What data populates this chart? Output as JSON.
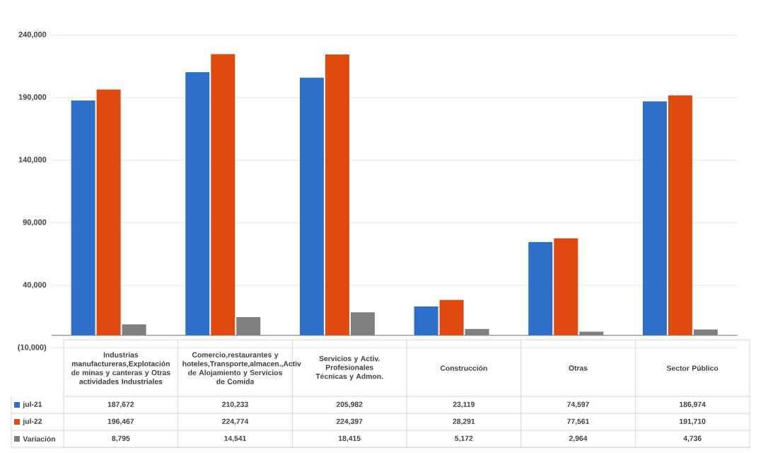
{
  "chart_data": {
    "type": "bar",
    "categories": [
      "Industrias manufactureras,Explotación de minas y canteras y Otras actividades Industriales",
      "Comercio,restaurantes y hoteles,Transporte,almacen.,Activ de Alojamiento y Servicios de Comida",
      "Servicios y Activ. Profesionales Técnicas y Admon.",
      "Construcción",
      "Otras",
      "Sector Público"
    ],
    "series": [
      {
        "name": "jul-21",
        "color": "#2e6fc9",
        "values": [
          187672,
          210233,
          205982,
          23119,
          74597,
          186974
        ],
        "value_labels": [
          "187,672",
          "210,233",
          "205,982",
          "23,119",
          "74,597",
          "186,974"
        ]
      },
      {
        "name": "jul-22",
        "color": "#e0490f",
        "values": [
          196467,
          224774,
          224397,
          28291,
          77561,
          191710
        ],
        "value_labels": [
          "196,467",
          "224,774",
          "224,397",
          "28,291",
          "77,561",
          "191,710"
        ]
      },
      {
        "name": "Variación",
        "color": "#7f7f7f",
        "values": [
          8795,
          14541,
          18415,
          5172,
          2964,
          4736
        ],
        "value_labels": [
          "8,795",
          "14,541",
          "18,415",
          "5,172",
          "2,964",
          "4,736"
        ]
      }
    ],
    "ylim": [
      -10000,
      240000
    ],
    "yticks": [
      {
        "value": -10000,
        "label": "(10,000)"
      },
      {
        "value": 40000,
        "label": "40,000"
      },
      {
        "value": 90000,
        "label": "90,000"
      },
      {
        "value": 140000,
        "label": "140,000"
      },
      {
        "value": 190000,
        "label": "190,000"
      },
      {
        "value": 240000,
        "label": "240,000"
      }
    ],
    "grid": "y",
    "legend": "bottom"
  }
}
